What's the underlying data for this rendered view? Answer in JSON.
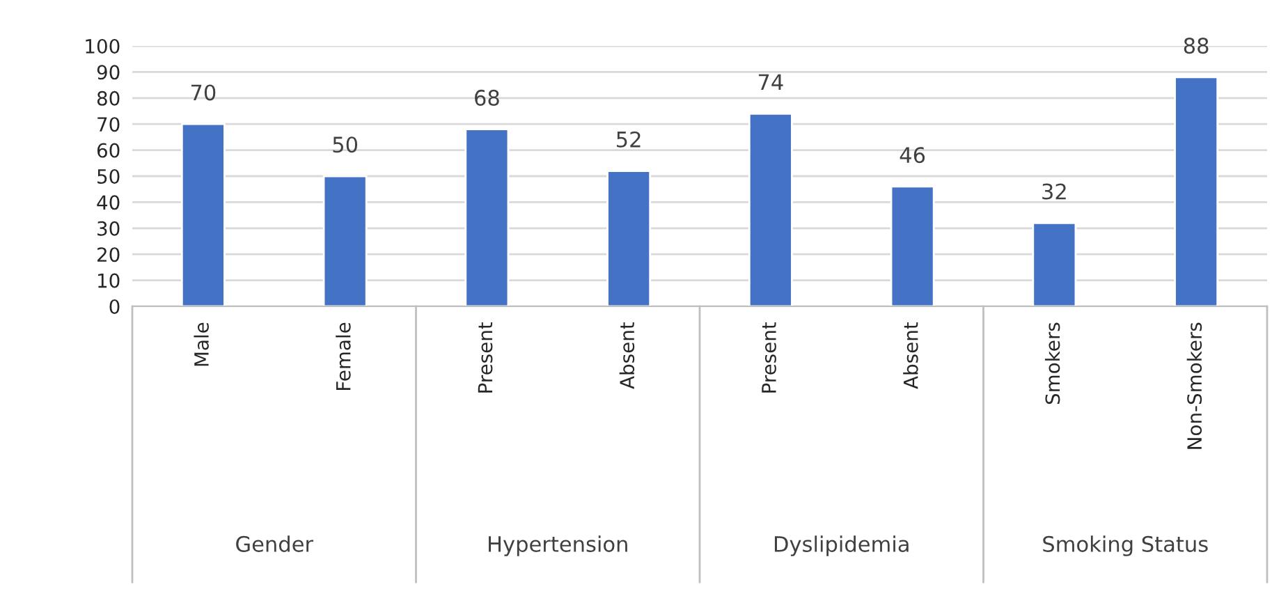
{
  "chart_data": {
    "type": "bar",
    "categories": [
      "Male",
      "Female",
      "Present",
      "Absent",
      "Present",
      "Absent",
      "Smokers",
      "Non-Smokers"
    ],
    "values": [
      70,
      50,
      68,
      52,
      74,
      46,
      32,
      88
    ],
    "color": "#4472c4",
    "ylim": [
      0,
      100
    ],
    "yticks": [
      0,
      10,
      20,
      30,
      40,
      50,
      60,
      70,
      80,
      90,
      100
    ],
    "grid": "y",
    "data_labels": true,
    "annotations": [
      "Gender",
      "Hypertension",
      "Dyslipidemia",
      "Smoking Status"
    ]
  }
}
